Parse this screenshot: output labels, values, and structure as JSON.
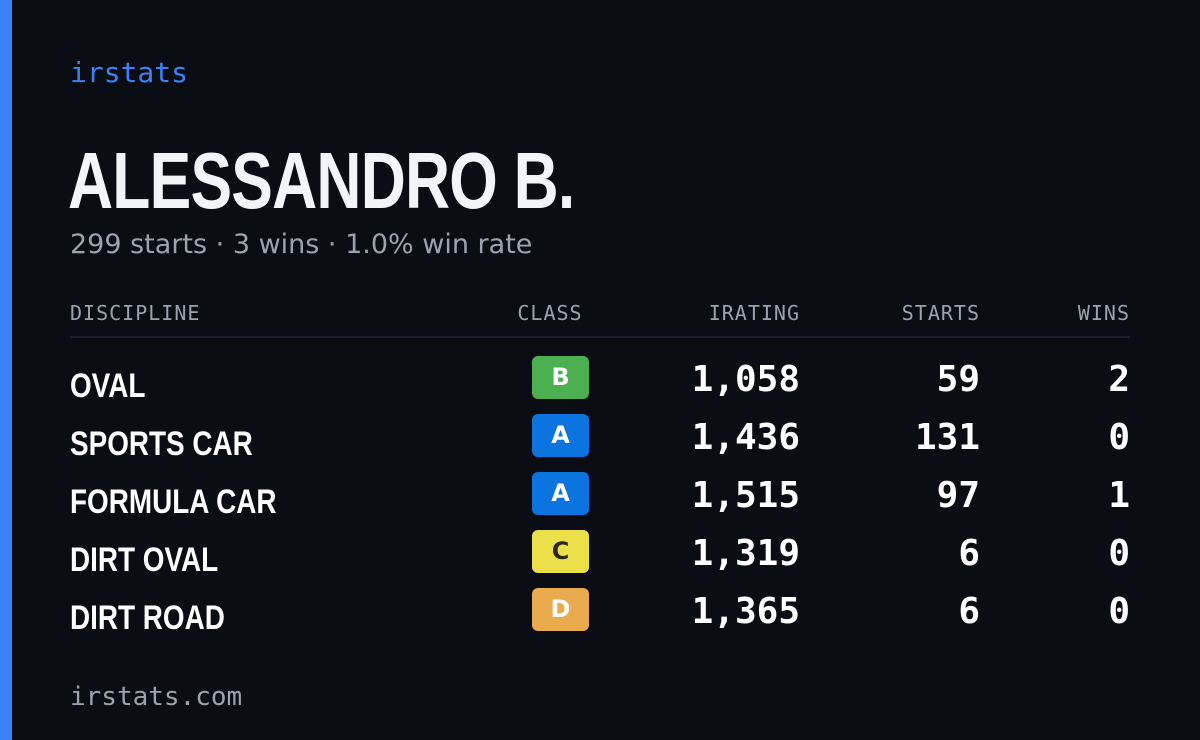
{
  "brand": "irstats",
  "driver": {
    "name": "ALESSANDRO B.",
    "summary": "299 starts · 3 wins · 1.0% win rate"
  },
  "table": {
    "headers": {
      "discipline": "DISCIPLINE",
      "class": "CLASS",
      "irating": "IRATING",
      "starts": "STARTS",
      "wins": "WINS"
    },
    "rows": [
      {
        "discipline": "OVAL",
        "class": "B",
        "irating": "1,058",
        "starts": "59",
        "wins": "2"
      },
      {
        "discipline": "SPORTS CAR",
        "class": "A",
        "irating": "1,436",
        "starts": "131",
        "wins": "0"
      },
      {
        "discipline": "FORMULA CAR",
        "class": "A",
        "irating": "1,515",
        "starts": "97",
        "wins": "1"
      },
      {
        "discipline": "DIRT OVAL",
        "class": "C",
        "irating": "1,319",
        "starts": "6",
        "wins": "0"
      },
      {
        "discipline": "DIRT ROAD",
        "class": "D",
        "irating": "1,365",
        "starts": "6",
        "wins": "0"
      }
    ]
  },
  "footer": "irstats.com",
  "colors": {
    "accent": "#3b82f6",
    "background": "#0b0d14",
    "class_A": "#0b74de",
    "class_B": "#4caf50",
    "class_C": "#ece04a",
    "class_D": "#eaaa4e"
  }
}
